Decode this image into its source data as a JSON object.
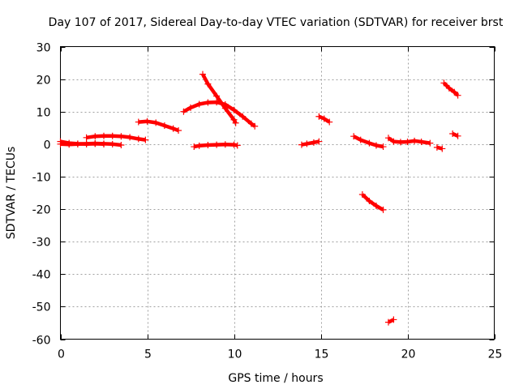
{
  "chart_data": {
    "type": "scatter",
    "title": "Day 107 of 2017, Sidereal Day-to-day VTEC variation (SDTVAR) for receiver brst",
    "xlabel": "GPS time / hours",
    "ylabel": "SDTVAR / TECUs",
    "xlim": [
      0,
      25
    ],
    "ylim": [
      -60,
      30
    ],
    "xticks": [
      0,
      5,
      10,
      15,
      20,
      25
    ],
    "yticks": [
      -60,
      -50,
      -40,
      -30,
      -20,
      -10,
      0,
      10,
      20,
      30
    ],
    "grid": true,
    "legend": "none",
    "marker_color": "#ff0000",
    "segments": [
      {
        "x": [
          0.0,
          0.5,
          1.0,
          1.5,
          2.0,
          2.5
        ],
        "y": [
          0.8,
          0.3,
          0.1,
          0.0,
          0.1,
          0.0
        ]
      },
      {
        "x": [
          0.0,
          0.5,
          1.0,
          1.5,
          2.0,
          2.5,
          3.0,
          3.5
        ],
        "y": [
          0.0,
          -0.1,
          0.0,
          0.1,
          0.2,
          0.1,
          0.0,
          -0.3
        ]
      },
      {
        "x": [
          1.5,
          2.0,
          2.5,
          3.0,
          3.5,
          4.0,
          4.5,
          4.9
        ],
        "y": [
          2.0,
          2.4,
          2.5,
          2.5,
          2.4,
          2.1,
          1.6,
          1.3
        ]
      },
      {
        "x": [
          4.5,
          5.0,
          5.5,
          6.0,
          6.5,
          6.8
        ],
        "y": [
          6.8,
          7.0,
          6.6,
          5.7,
          4.8,
          4.2
        ]
      },
      {
        "x": [
          7.7,
          8.0,
          8.5,
          9.0,
          9.5,
          10.0,
          10.2
        ],
        "y": [
          -0.8,
          -0.5,
          -0.3,
          -0.2,
          -0.1,
          -0.2,
          -0.4
        ]
      },
      {
        "x": [
          7.1,
          7.5,
          8.0,
          8.5,
          9.0,
          9.5,
          10.0,
          10.5,
          11.0,
          11.2
        ],
        "y": [
          10.0,
          11.2,
          12.3,
          12.8,
          12.9,
          12.2,
          10.5,
          8.5,
          6.3,
          5.5
        ]
      },
      {
        "x": [
          8.2,
          8.5,
          9.0,
          9.5,
          10.0,
          10.1
        ],
        "y": [
          21.5,
          18.5,
          14.8,
          11.0,
          7.5,
          6.5
        ]
      },
      {
        "x": [
          13.9,
          14.2,
          14.6,
          14.9
        ],
        "y": [
          -0.2,
          0.1,
          0.5,
          0.8
        ]
      },
      {
        "x": [
          14.9,
          15.2,
          15.5
        ],
        "y": [
          8.5,
          7.8,
          6.8
        ]
      },
      {
        "x": [
          16.9,
          17.3,
          17.8,
          18.2,
          18.6
        ],
        "y": [
          2.4,
          1.3,
          0.3,
          -0.4,
          -0.8
        ]
      },
      {
        "x": [
          17.4,
          17.8,
          18.2,
          18.6
        ],
        "y": [
          -15.5,
          -17.5,
          -19.0,
          -20.2
        ]
      },
      {
        "x": [
          18.9,
          19.2
        ],
        "y": [
          -54.8,
          -54.0
        ]
      },
      {
        "x": [
          18.9,
          19.2,
          19.6,
          20.0,
          20.4,
          20.8,
          21.3
        ],
        "y": [
          1.9,
          0.8,
          0.6,
          0.7,
          1.0,
          0.7,
          0.3
        ]
      },
      {
        "x": [
          21.7,
          22.0
        ],
        "y": [
          -1.0,
          -1.4
        ]
      },
      {
        "x": [
          22.1,
          22.4,
          22.7,
          22.9
        ],
        "y": [
          18.8,
          17.2,
          16.0,
          15.0
        ]
      },
      {
        "x": [
          22.6,
          22.9
        ],
        "y": [
          3.2,
          2.5
        ]
      }
    ]
  }
}
